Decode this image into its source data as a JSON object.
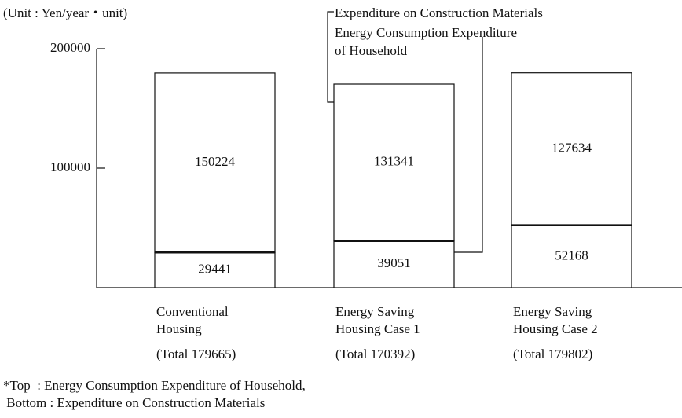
{
  "chart_data": {
    "type": "bar",
    "stacked": true,
    "unit_label": "(Unit : Yen/year・unit)",
    "categories": [
      [
        "Conventional",
        "Housing"
      ],
      [
        "Energy Saving",
        "Housing Case 1"
      ],
      [
        "Energy Saving",
        "Housing Case 2"
      ]
    ],
    "total_labels": [
      "(Total 179665)",
      "(Total 170392)",
      "(Total 179802)"
    ],
    "series": [
      {
        "name": [
          "Expenditure on Construction Materials"
        ],
        "color": "#ffffff",
        "values": [
          29441,
          39051,
          52168
        ]
      },
      {
        "name": [
          "Energy Consumption Expenditure",
          "of Household"
        ],
        "color": "#ffffff",
        "values": [
          150224,
          131341,
          127634
        ]
      }
    ],
    "ylim": [
      0,
      200000
    ],
    "yticks": [
      100000,
      200000
    ],
    "footnote": [
      "*Top  : Energy Consumption Expenditure of Household,",
      " Bottom : Expenditure on Construction Materials"
    ]
  }
}
